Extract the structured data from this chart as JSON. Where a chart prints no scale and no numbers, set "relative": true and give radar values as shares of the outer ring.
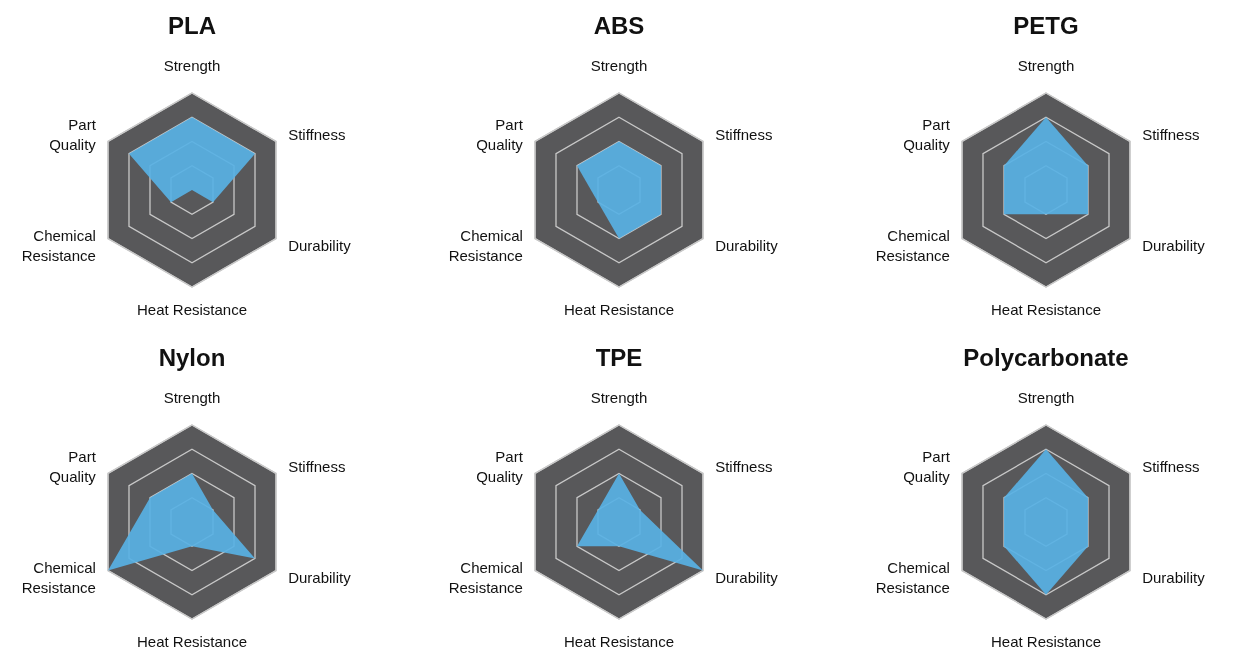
{
  "chart_data": [
    {
      "type": "radar",
      "title": "PLA",
      "categories": [
        "Strength",
        "Stiffness",
        "Durability",
        "Heat Resistance",
        "Chemical Resistance",
        "Part Quality"
      ],
      "relative": true,
      "grid": true,
      "series": [
        {
          "color": "#58b1e4",
          "values": [
            0.75,
            0.75,
            0.25,
            0,
            0.25,
            0.75
          ]
        }
      ]
    },
    {
      "type": "radar",
      "title": "ABS",
      "categories": [
        "Strength",
        "Stiffness",
        "Durability",
        "Heat Resistance",
        "Chemical Resistance",
        "Part Quality"
      ],
      "relative": true,
      "grid": true,
      "series": [
        {
          "color": "#58b1e4",
          "values": [
            0.5,
            0.5,
            0.5,
            0.5,
            0.25,
            0.5
          ]
        }
      ]
    },
    {
      "type": "radar",
      "title": "PETG",
      "categories": [
        "Strength",
        "Stiffness",
        "Durability",
        "Heat Resistance",
        "Chemical Resistance",
        "Part Quality"
      ],
      "relative": true,
      "grid": true,
      "series": [
        {
          "color": "#58b1e4",
          "values": [
            0.75,
            0.5,
            0.5,
            0.25,
            0.5,
            0.5
          ]
        }
      ]
    },
    {
      "type": "radar",
      "title": "Nylon",
      "categories": [
        "Strength",
        "Stiffness",
        "Durability",
        "Heat Resistance",
        "Chemical Resistance",
        "Part Quality"
      ],
      "relative": true,
      "grid": true,
      "series": [
        {
          "color": "#58b1e4",
          "values": [
            0.5,
            0.25,
            0.75,
            0.25,
            1,
            0.5
          ]
        }
      ]
    },
    {
      "type": "radar",
      "title": "TPE",
      "categories": [
        "Strength",
        "Stiffness",
        "Durability",
        "Heat Resistance",
        "Chemical Resistance",
        "Part Quality"
      ],
      "relative": true,
      "grid": true,
      "series": [
        {
          "color": "#58b1e4",
          "values": [
            0.5,
            0.25,
            1,
            0.25,
            0.5,
            0.25
          ]
        }
      ]
    },
    {
      "type": "radar",
      "title": "Polycarbonate",
      "categories": [
        "Strength",
        "Stiffness",
        "Durability",
        "Heat Resistance",
        "Chemical Resistance",
        "Part Quality"
      ],
      "relative": true,
      "grid": true,
      "series": [
        {
          "color": "#58b1e4",
          "values": [
            0.75,
            0.5,
            0.5,
            0.75,
            0.5,
            0.5
          ]
        }
      ]
    }
  ]
}
